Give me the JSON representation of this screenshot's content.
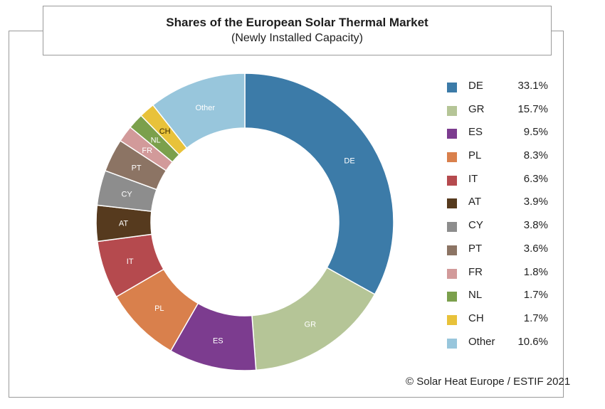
{
  "chart_data": {
    "type": "pie",
    "variant": "donut",
    "title": "Shares of the European Solar Thermal Market",
    "subtitle": "(Newly Installed Capacity)",
    "unit": "%",
    "slices": [
      {
        "label": "DE",
        "value": 33.1,
        "display": "33.1%",
        "color": "#3c7ba8",
        "text_color": "#ffffff"
      },
      {
        "label": "GR",
        "value": 15.7,
        "display": "15.7%",
        "color": "#b5c597",
        "text_color": "#ffffff"
      },
      {
        "label": "ES",
        "value": 9.5,
        "display": "9.5%",
        "color": "#7c3c8f",
        "text_color": "#ffffff"
      },
      {
        "label": "PL",
        "value": 8.3,
        "display": "8.3%",
        "color": "#d9804c",
        "text_color": "#ffffff"
      },
      {
        "label": "IT",
        "value": 6.3,
        "display": "6.3%",
        "color": "#b54a4e",
        "text_color": "#ffffff"
      },
      {
        "label": "AT",
        "value": 3.9,
        "display": "3.9%",
        "color": "#563a1e",
        "text_color": "#ffffff"
      },
      {
        "label": "CY",
        "value": 3.8,
        "display": "3.8%",
        "color": "#8d8d8d",
        "text_color": "#ffffff"
      },
      {
        "label": "PT",
        "value": 3.6,
        "display": "3.6%",
        "color": "#8c7464",
        "text_color": "#ffffff"
      },
      {
        "label": "FR",
        "value": 1.8,
        "display": "1.8%",
        "color": "#d29a9a",
        "text_color": "#ffffff"
      },
      {
        "label": "NL",
        "value": 1.7,
        "display": "1.7%",
        "color": "#7ba04c",
        "text_color": "#ffffff"
      },
      {
        "label": "CH",
        "value": 1.7,
        "display": "1.7%",
        "color": "#e8c23a",
        "text_color": "#3a2a00"
      },
      {
        "label": "Other",
        "value": 10.6,
        "display": "10.6%",
        "color": "#98c6dc",
        "text_color": "#ffffff"
      }
    ],
    "legend_position": "right"
  },
  "footer": {
    "copyright": "© Solar Heat Europe / ESTIF 2021"
  }
}
